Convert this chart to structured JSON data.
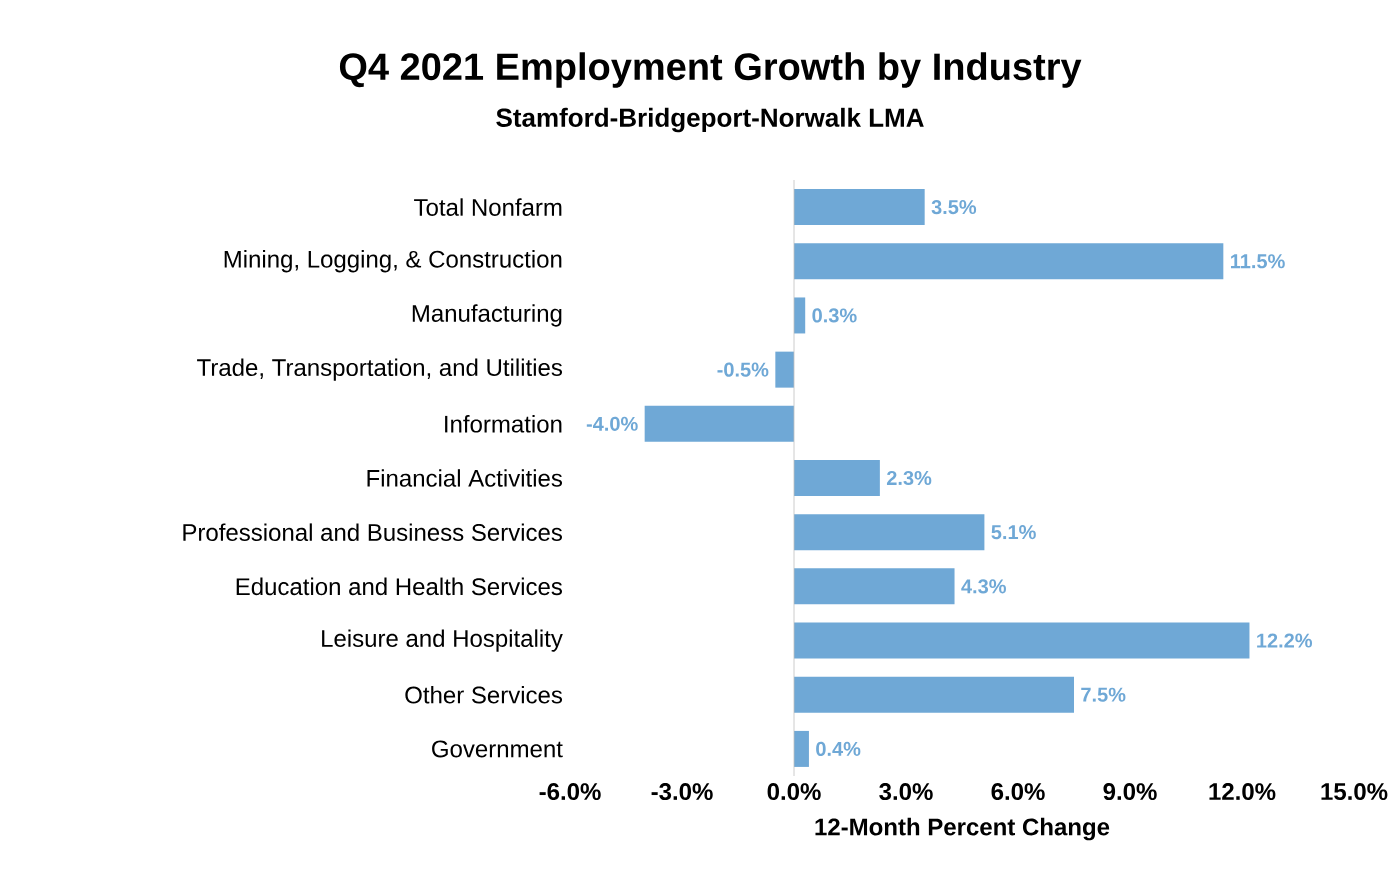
{
  "chart_data": {
    "type": "bar",
    "orientation": "horizontal",
    "title": "Q4 2021 Employment Growth by Industry",
    "subtitle": "Stamford-Bridgeport-Norwalk LMA",
    "xlabel": "12-Month Percent Change",
    "categories": [
      "Total Nonfarm",
      "Mining, Logging, & Construction",
      "Manufacturing",
      "Trade, Transportation, and Utilities",
      "Information",
      "Financial Activities",
      "Professional and Business Services",
      "Education and Health Services",
      "Leisure and Hospitality",
      "Other Services",
      "Government"
    ],
    "values": [
      3.5,
      11.5,
      0.3,
      -0.5,
      -4.0,
      2.3,
      5.1,
      4.3,
      12.2,
      7.5,
      0.4
    ],
    "value_labels": [
      "3.5%",
      "11.5%",
      "0.3%",
      "-0.5%",
      "-4.0%",
      "2.3%",
      "5.1%",
      "4.3%",
      "12.2%",
      "7.5%",
      "0.4%"
    ],
    "color": "#6fa8d6",
    "xlim": [
      -6,
      15
    ],
    "xticks": [
      {
        "value": -6,
        "label": "-6.0%"
      },
      {
        "value": -3,
        "label": "-3.0%"
      },
      {
        "value": 0,
        "label": "0.0%"
      },
      {
        "value": 3,
        "label": "3.0%"
      },
      {
        "value": 6,
        "label": "6.0%"
      },
      {
        "value": 9,
        "label": "9.0%"
      },
      {
        "value": 12,
        "label": "12.0%"
      },
      {
        "value": 15,
        "label": "15.0%"
      }
    ],
    "ref_lines": [
      {
        "axis": "x",
        "value": 0,
        "color": "#bfbfbf"
      }
    ],
    "grid": false,
    "legend": false
  }
}
